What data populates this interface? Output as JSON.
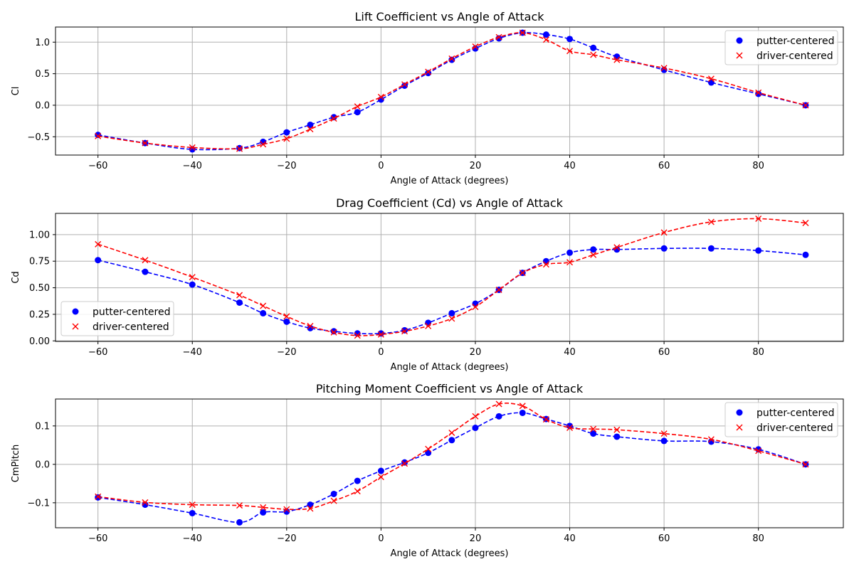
{
  "chart_data": [
    {
      "type": "line",
      "title": "Lift Coefficient vs Angle of Attack",
      "xlabel": "Angle of Attack (degrees)",
      "ylabel": "Cl",
      "xlim": [
        -69,
        98
      ],
      "ylim": [
        -0.79,
        1.24
      ],
      "xticks": [
        -60,
        -40,
        -20,
        0,
        20,
        40,
        60,
        80
      ],
      "yticks": [
        -0.5,
        0.0,
        0.5,
        1.0
      ],
      "ytick_labels": [
        "−0.5",
        "0.0",
        "0.5",
        "1.0"
      ],
      "legend_position": "top-right",
      "grid": true,
      "series": [
        {
          "name": "putter-centered",
          "color": "#0000ff",
          "marker": "circle",
          "x": [
            -60,
            -50,
            -40,
            -30,
            -25,
            -20,
            -15,
            -10,
            -5,
            0,
            5,
            10,
            15,
            20,
            25,
            30,
            35,
            40,
            45,
            50,
            60,
            70,
            80,
            90
          ],
          "y": [
            -0.47,
            -0.6,
            -0.7,
            -0.68,
            -0.58,
            -0.43,
            -0.31,
            -0.19,
            -0.11,
            0.09,
            0.31,
            0.51,
            0.72,
            0.9,
            1.06,
            1.15,
            1.12,
            1.05,
            0.91,
            0.77,
            0.56,
            0.36,
            0.18,
            0.0
          ]
        },
        {
          "name": "driver-centered",
          "color": "#ff0000",
          "marker": "x",
          "x": [
            -60,
            -50,
            -40,
            -30,
            -25,
            -20,
            -15,
            -10,
            -5,
            0,
            5,
            10,
            15,
            20,
            25,
            30,
            35,
            40,
            45,
            50,
            60,
            70,
            80,
            90
          ],
          "y": [
            -0.49,
            -0.6,
            -0.67,
            -0.69,
            -0.62,
            -0.53,
            -0.38,
            -0.21,
            -0.02,
            0.13,
            0.33,
            0.53,
            0.74,
            0.93,
            1.08,
            1.15,
            1.04,
            0.86,
            0.8,
            0.72,
            0.59,
            0.42,
            0.2,
            0.0
          ]
        }
      ]
    },
    {
      "type": "line",
      "title": "Drag Coefficient (Cd) vs Angle of Attack",
      "xlabel": "Angle of Attack (degrees)",
      "ylabel": "Cd",
      "xlim": [
        -69,
        98
      ],
      "ylim": [
        -0.005,
        1.2
      ],
      "xticks": [
        -60,
        -40,
        -20,
        0,
        20,
        40,
        60,
        80
      ],
      "yticks": [
        0.0,
        0.25,
        0.5,
        0.75,
        1.0
      ],
      "ytick_labels": [
        "0.00",
        "0.25",
        "0.50",
        "0.75",
        "1.00"
      ],
      "legend_position": "lower-left",
      "grid": true,
      "series": [
        {
          "name": "putter-centered",
          "color": "#0000ff",
          "marker": "circle",
          "x": [
            -60,
            -50,
            -40,
            -30,
            -25,
            -20,
            -15,
            -10,
            -5,
            0,
            5,
            10,
            15,
            20,
            25,
            30,
            35,
            40,
            45,
            50,
            60,
            70,
            80,
            90
          ],
          "y": [
            0.76,
            0.65,
            0.53,
            0.36,
            0.26,
            0.18,
            0.12,
            0.09,
            0.07,
            0.07,
            0.1,
            0.17,
            0.26,
            0.35,
            0.48,
            0.64,
            0.75,
            0.83,
            0.86,
            0.86,
            0.87,
            0.87,
            0.85,
            0.81
          ]
        },
        {
          "name": "driver-centered",
          "color": "#ff0000",
          "marker": "x",
          "x": [
            -60,
            -50,
            -40,
            -30,
            -25,
            -20,
            -15,
            -10,
            -5,
            0,
            5,
            10,
            15,
            20,
            25,
            30,
            35,
            40,
            45,
            50,
            60,
            70,
            80,
            90
          ],
          "y": [
            0.91,
            0.76,
            0.6,
            0.43,
            0.33,
            0.23,
            0.14,
            0.08,
            0.05,
            0.06,
            0.09,
            0.14,
            0.21,
            0.32,
            0.48,
            0.64,
            0.72,
            0.74,
            0.81,
            0.88,
            1.02,
            1.12,
            1.15,
            1.11
          ]
        }
      ]
    },
    {
      "type": "line",
      "title": "Pitching Moment Coefficient vs Angle of Attack",
      "xlabel": "Angle of Attack (degrees)",
      "ylabel": "CmPitch",
      "xlim": [
        -69,
        98
      ],
      "ylim": [
        -0.165,
        0.17
      ],
      "xticks": [
        -60,
        -40,
        -20,
        0,
        20,
        40,
        60,
        80
      ],
      "yticks": [
        -0.1,
        0.0,
        0.1
      ],
      "ytick_labels": [
        "−0.1",
        "0.0",
        "0.1"
      ],
      "legend_position": "top-right",
      "grid": true,
      "series": [
        {
          "name": "putter-centered",
          "color": "#0000ff",
          "marker": "circle",
          "x": [
            -60,
            -50,
            -40,
            -30,
            -25,
            -20,
            -15,
            -10,
            -5,
            0,
            5,
            10,
            15,
            20,
            25,
            30,
            35,
            40,
            45,
            50,
            60,
            70,
            80,
            90
          ],
          "y": [
            -0.086,
            -0.105,
            -0.127,
            -0.151,
            -0.125,
            -0.123,
            -0.105,
            -0.077,
            -0.043,
            -0.017,
            0.005,
            0.03,
            0.063,
            0.095,
            0.125,
            0.134,
            0.118,
            0.1,
            0.08,
            0.072,
            0.061,
            0.059,
            0.039,
            0.0
          ]
        },
        {
          "name": "driver-centered",
          "color": "#ff0000",
          "marker": "x",
          "x": [
            -60,
            -50,
            -40,
            -30,
            -25,
            -20,
            -15,
            -10,
            -5,
            0,
            5,
            10,
            15,
            20,
            25,
            30,
            35,
            40,
            45,
            50,
            60,
            70,
            80,
            90
          ],
          "y": [
            -0.084,
            -0.099,
            -0.105,
            -0.107,
            -0.112,
            -0.117,
            -0.115,
            -0.095,
            -0.07,
            -0.033,
            0.002,
            0.04,
            0.082,
            0.125,
            0.157,
            0.152,
            0.117,
            0.095,
            0.092,
            0.09,
            0.08,
            0.065,
            0.035,
            0.0
          ]
        }
      ]
    }
  ]
}
